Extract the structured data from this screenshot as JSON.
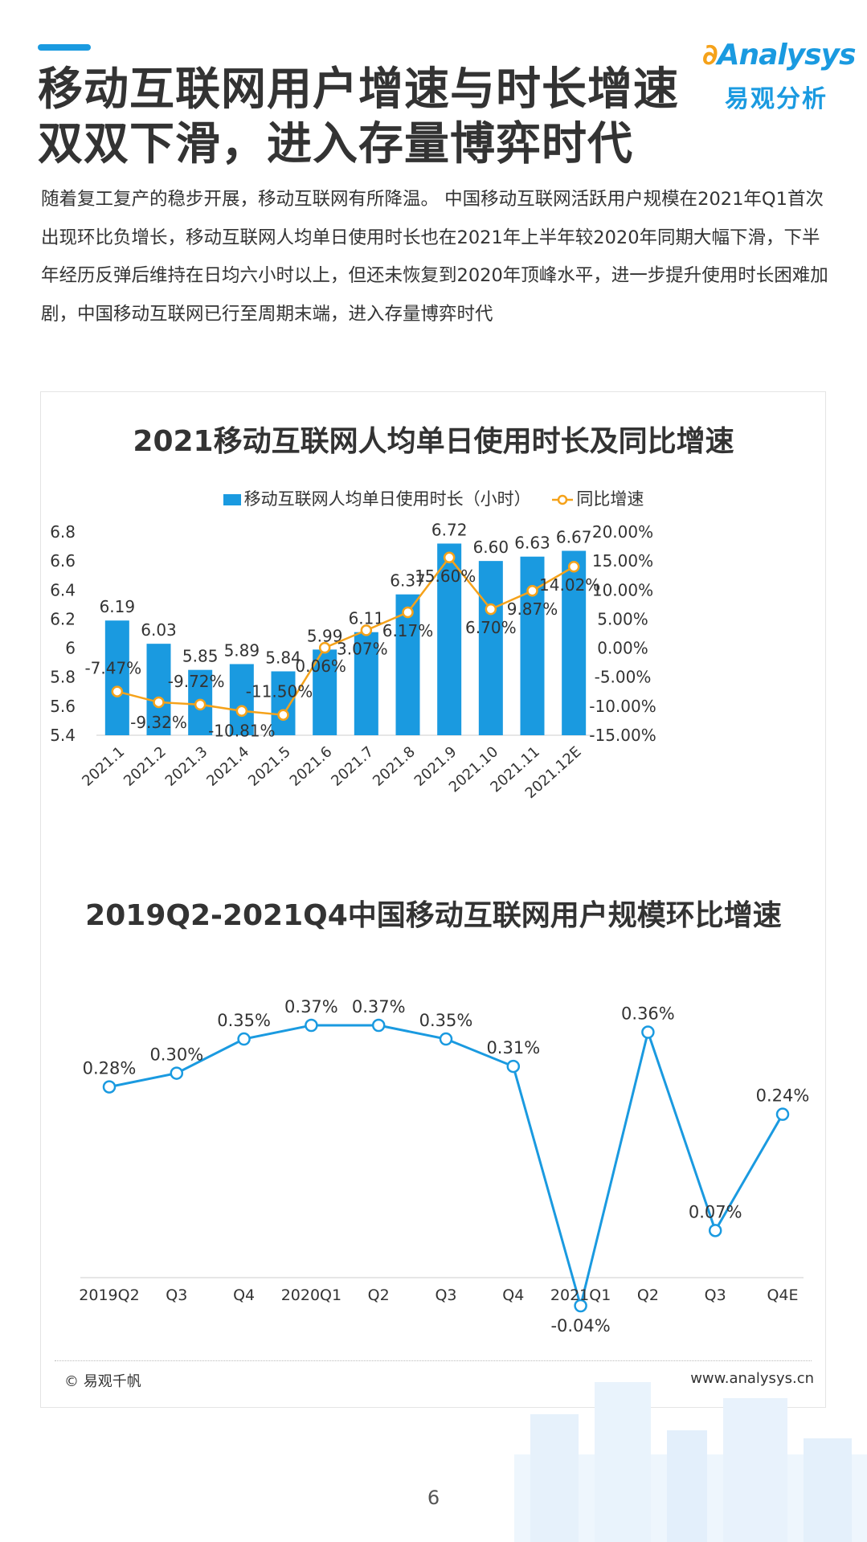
{
  "title_line1": "移动互联网用户增速与时长增速",
  "title_line2": "双双下滑，进入存量博弈时代",
  "logo": {
    "en": "Analysys",
    "cn": "易观分析"
  },
  "intro": "随着复工复产的稳步开展，移动互联网有所降温。 中国移动互联网活跃用户规模在2021年Q1首次出现环比负增长，移动互联网人均单日使用时长也在2021年上半年较2020年同期大幅下滑，下半年经历反弹后维持在日均六小时以上，但还未恢复到2020年顶峰水平，进一步提升使用时长困难加剧，中国移动互联网已行至周期末端，进入存量博弈时代",
  "colors": {
    "accent": "#1a9ae0",
    "orange": "#f5a21a",
    "text": "#333333"
  },
  "chart_data": [
    {
      "type": "bar+line",
      "title": "2021移动互联网人均单日使用时长及同比增速",
      "categories": [
        "2021.1",
        "2021.2",
        "2021.3",
        "2021.4",
        "2021.5",
        "2021.6",
        "2021.7",
        "2021.8",
        "2021.9",
        "2021.10",
        "2021.11",
        "2021.12E"
      ],
      "series": [
        {
          "name": "移动互联网人均单日使用时长（小时）",
          "type": "bar",
          "axis": "left",
          "values": [
            6.19,
            6.03,
            5.85,
            5.89,
            5.84,
            5.99,
            6.11,
            6.37,
            6.72,
            6.6,
            6.63,
            6.67
          ],
          "labels": [
            "6.19",
            "6.03",
            "5.85",
            "5.89",
            "5.84",
            "5.99",
            "6.11",
            "6.37",
            "6.72",
            "6.60",
            "6.63",
            "6.67"
          ]
        },
        {
          "name": "同比增速",
          "type": "line",
          "axis": "right",
          "values": [
            -7.47,
            -9.32,
            -9.72,
            -10.81,
            -11.5,
            0.06,
            3.07,
            6.17,
            15.6,
            6.7,
            9.87,
            14.02
          ],
          "labels": [
            "-7.47%",
            "-9.32%",
            "-9.72%",
            "-10.81%",
            "-11.50%",
            "0.06%",
            "3.07%",
            "6.17%",
            "15.60%",
            "6.70%",
            "9.87%",
            "14.02%"
          ]
        }
      ],
      "y_left": {
        "min": 5.4,
        "max": 6.8,
        "ticks": [
          "6.8",
          "6.6",
          "6.4",
          "6.2",
          "6",
          "5.8",
          "5.6",
          "5.4"
        ]
      },
      "y_right": {
        "min": -15,
        "max": 20,
        "ticks": [
          "20.00%",
          "15.00%",
          "10.00%",
          "5.00%",
          "0.00%",
          "-5.00%",
          "-10.00%",
          "-15.00%"
        ]
      },
      "legend_position": "top-center",
      "grid": false
    },
    {
      "type": "line",
      "title": "2019Q2-2021Q4中国移动互联网用户规模环比增速",
      "categories": [
        "2019Q2",
        "Q3",
        "Q4",
        "2020Q1",
        "Q2",
        "Q3",
        "Q4",
        "2021Q1",
        "Q2",
        "Q3",
        "Q4E"
      ],
      "series": [
        {
          "values": [
            0.28,
            0.3,
            0.35,
            0.37,
            0.37,
            0.35,
            0.31,
            -0.04,
            0.36,
            0.07,
            0.24
          ],
          "labels": [
            "0.28%",
            "0.30%",
            "0.35%",
            "0.37%",
            "0.37%",
            "0.35%",
            "0.31%",
            "-0.04%",
            "0.36%",
            "0.07%",
            "0.24%"
          ]
        }
      ],
      "grid": false
    }
  ],
  "footer": {
    "copyright": "© 易观千帆",
    "website": "www.analysys.cn"
  },
  "page_number": "6"
}
